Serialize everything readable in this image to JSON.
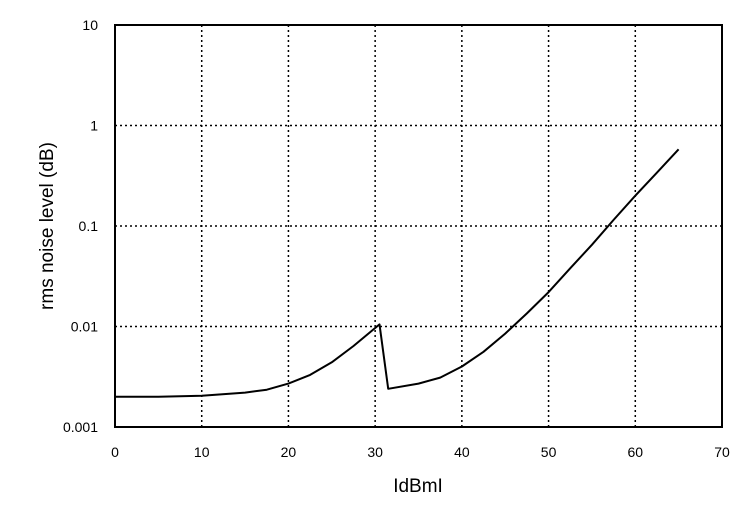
{
  "chart_data": {
    "type": "line",
    "title": "",
    "xlabel": "IdBmI",
    "ylabel": "rms noise level (dB)",
    "xlim": [
      0,
      70
    ],
    "ylim": [
      0.001,
      10
    ],
    "yscale": "log",
    "grid": true,
    "grid_style": "dotted",
    "x_ticks": [
      "0",
      "10",
      "20",
      "30",
      "40",
      "50",
      "60",
      "70"
    ],
    "y_ticks": [
      "0.001",
      "0.01",
      "0.1",
      "1",
      "10"
    ],
    "line_color": "#000000",
    "series": [
      {
        "x": [
          0,
          5,
          10,
          15,
          17.5,
          20,
          22.5,
          25,
          27.5,
          30.5,
          31.5,
          35,
          37.5,
          40,
          42.5,
          45,
          47.5,
          50,
          52.5,
          55,
          57.5,
          60,
          62.5,
          65
        ],
        "y": [
          0.002,
          0.002,
          0.00205,
          0.0022,
          0.00235,
          0.0027,
          0.0033,
          0.0044,
          0.0064,
          0.0105,
          0.0024,
          0.0027,
          0.0031,
          0.004,
          0.0056,
          0.0085,
          0.0135,
          0.022,
          0.038,
          0.065,
          0.115,
          0.2,
          0.34,
          0.58
        ]
      }
    ]
  }
}
